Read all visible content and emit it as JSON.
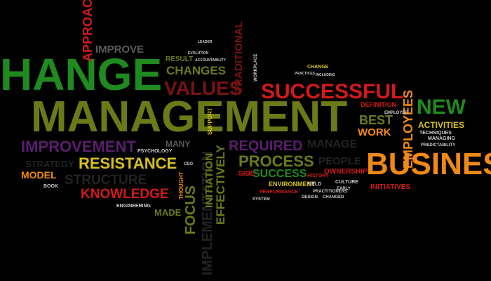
{
  "words": {
    "change": "HANGE",
    "management": "MANAGEMENT",
    "business": "BUSINES",
    "successful": "SUCCESSFUL",
    "values": "VALUES",
    "new": "NEW",
    "improvement": "IMPROVEMENT",
    "resistance": "RESISTANCE",
    "required": "REQUIRED",
    "process": "PROCESS",
    "knowledge": "KNOWLEDGE",
    "structure": "STRUCTURE",
    "changes": "CHANGES",
    "improve": "IMPROVE",
    "approach": "APPROACH",
    "traditional": "TRADITIONAL",
    "implementation": "IMPLEMENTATION",
    "focus": "FOCUS",
    "effectively": "EFFECTIVELY",
    "initiation": "INITIATION",
    "employees": "EMPLOYEES",
    "best": "BEST",
    "work": "WORK",
    "activities": "ACTIVITIES",
    "manage": "MANAGE",
    "success": "SUCCESS",
    "people": "PEOPLE",
    "strategy": "STRATEGY",
    "model": "MODEL",
    "many": "MANY",
    "made": "MADE",
    "result": "RESULT",
    "initiatives": "INITIATIVES",
    "definition": "DEFINITION",
    "side": "SIDE",
    "environment": "ENVIRONMENT",
    "ownership": "OWNERSHIP",
    "techniques": "TECHNIQUES",
    "managing": "MANAGING",
    "psychology": "PSYCHOLOGY",
    "engineering": "ENGINEERING",
    "book": "BOOK",
    "performance": "PERFORMANCE",
    "system": "SYSTEM",
    "history": "HISTORY",
    "field": "FIELD",
    "culture": "CULTURE",
    "early": "EARLY",
    "practitioners": "PRACTITIONERS",
    "design": "DESIGN",
    "changed": "CHANGED",
    "accountability": "ACCOUNTABILITY",
    "evolution": "EVOLUTION",
    "employee": "EMPLOYEE",
    "predictability": "PREDICTABILITY",
    "including": "INCLUDING",
    "practices": "PRACTICES",
    "workplace": "WORKPLACE",
    "leader": "LEADER",
    "ceo": "CEO",
    "change_small": "CHANGE",
    "support": "SUPPORT",
    "thought": "THOUGHT"
  },
  "colors": {
    "green": "#1f8a1f",
    "olive": "#6b7a17",
    "maroon": "#7a1212",
    "red": "#d11a1a",
    "orange": "#f08a12",
    "purple": "#5a1e6e",
    "yellow": "#d9c21a",
    "lime": "#a8c21a",
    "gray": "#9a9a9a"
  }
}
